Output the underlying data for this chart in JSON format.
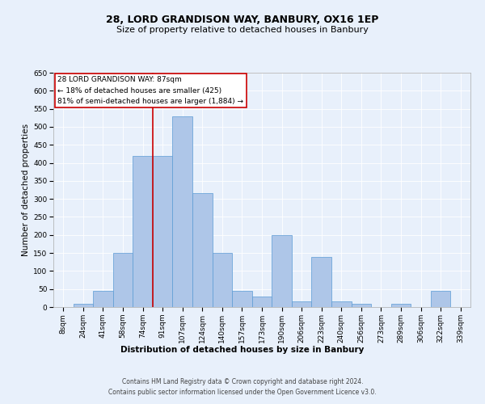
{
  "title1": "28, LORD GRANDISON WAY, BANBURY, OX16 1EP",
  "title2": "Size of property relative to detached houses in Banbury",
  "xlabel": "Distribution of detached houses by size in Banbury",
  "ylabel": "Number of detached properties",
  "footnote1": "Contains HM Land Registry data © Crown copyright and database right 2024.",
  "footnote2": "Contains public sector information licensed under the Open Government Licence v3.0.",
  "annotation_title": "28 LORD GRANDISON WAY: 87sqm",
  "annotation_line1": "← 18% of detached houses are smaller (425)",
  "annotation_line2": "81% of semi-detached houses are larger (1,884) →",
  "bin_labels": [
    "8sqm",
    "24sqm",
    "41sqm",
    "58sqm",
    "74sqm",
    "91sqm",
    "107sqm",
    "124sqm",
    "140sqm",
    "157sqm",
    "173sqm",
    "190sqm",
    "206sqm",
    "223sqm",
    "240sqm",
    "256sqm",
    "273sqm",
    "289sqm",
    "306sqm",
    "322sqm",
    "339sqm"
  ],
  "bar_values": [
    0,
    10,
    45,
    150,
    420,
    420,
    530,
    315,
    150,
    45,
    30,
    200,
    15,
    140,
    15,
    10,
    0,
    10,
    0,
    45,
    0
  ],
  "bar_color": "#aec6e8",
  "bar_edge_color": "#5b9bd5",
  "red_line_x": 4.5,
  "ylim": [
    0,
    650
  ],
  "yticks": [
    0,
    50,
    100,
    150,
    200,
    250,
    300,
    350,
    400,
    450,
    500,
    550,
    600,
    650
  ],
  "background_color": "#e8f0fb",
  "plot_background": "#e8f0fb",
  "grid_color": "#ffffff",
  "annotation_box_color": "#ffffff",
  "annotation_box_edge": "#cc0000",
  "red_line_color": "#cc0000",
  "title_fontsize": 9,
  "subtitle_fontsize": 8,
  "axis_label_fontsize": 7.5,
  "tick_fontsize": 6.5,
  "annotation_fontsize": 6.5,
  "footnote_fontsize": 5.5
}
